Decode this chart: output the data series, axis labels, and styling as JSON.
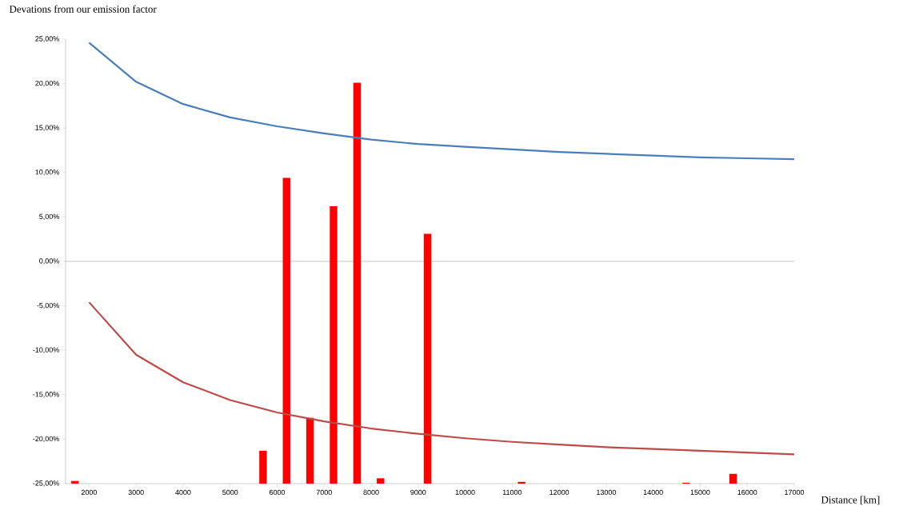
{
  "chart_data": {
    "type": "line",
    "ylabel": "Devations from our emission factor",
    "xlabel": "Distance [km]",
    "xlim": [
      1500,
      17000
    ],
    "xticks": [
      2000,
      3000,
      4000,
      5000,
      6000,
      7000,
      8000,
      9000,
      10000,
      11000,
      12000,
      13000,
      14000,
      15000,
      16000,
      17000
    ],
    "ylim": [
      -25,
      25
    ],
    "yticks": [
      {
        "value": -25,
        "label": "-25,00%"
      },
      {
        "value": -20,
        "label": "-20,00%"
      },
      {
        "value": -15,
        "label": "-15,00%"
      },
      {
        "value": -10,
        "label": "-10,00%"
      },
      {
        "value": -5,
        "label": "-5,00%"
      },
      {
        "value": 0,
        "label": "0,00%"
      },
      {
        "value": 5,
        "label": "5,00%"
      },
      {
        "value": 10,
        "label": "10,00%"
      },
      {
        "value": 15,
        "label": "15,00%"
      },
      {
        "value": 20,
        "label": "20,00%"
      },
      {
        "value": 25,
        "label": "25,00%"
      }
    ],
    "grid": false,
    "ref_lines": [
      {
        "axis": "y",
        "value": 0,
        "color": "#a0a0a0"
      }
    ],
    "series": [
      {
        "type": "bar",
        "color": "#ff0000",
        "x": [
          1700,
          5700,
          6200,
          6700,
          7200,
          7700,
          8200,
          9200,
          11200,
          14700,
          15700
        ],
        "base": [
          -25,
          -25,
          -25,
          -25,
          -25,
          -25,
          -25,
          -25,
          -25,
          -25,
          -25
        ],
        "values": [
          0.3,
          3.7,
          34.4,
          7.4,
          31.2,
          45.1,
          0.6,
          28.1,
          0.2,
          0.1,
          1.1
        ]
      },
      {
        "color": "#4a7ebb",
        "x": [
          2000,
          3000,
          4000,
          5000,
          6000,
          7000,
          8000,
          9000,
          10000,
          11000,
          12000,
          13000,
          14000,
          15000,
          16000,
          17000
        ],
        "values": [
          24.6,
          20.2,
          17.7,
          16.2,
          15.2,
          14.4,
          13.7,
          13.2,
          12.9,
          12.6,
          12.3,
          12.1,
          11.9,
          11.7,
          11.6,
          11.5
        ]
      },
      {
        "color": "#be4b48",
        "x": [
          2000,
          3000,
          4000,
          5000,
          6000,
          7000,
          8000,
          9000,
          10000,
          11000,
          12000,
          13000,
          14000,
          15000,
          16000,
          17000
        ],
        "values": [
          -4.6,
          -10.5,
          -13.6,
          -15.6,
          -17.0,
          -18.0,
          -18.8,
          -19.4,
          -19.9,
          -20.3,
          -20.6,
          -20.9,
          -21.1,
          -21.3,
          -21.5,
          -21.7
        ]
      }
    ]
  }
}
